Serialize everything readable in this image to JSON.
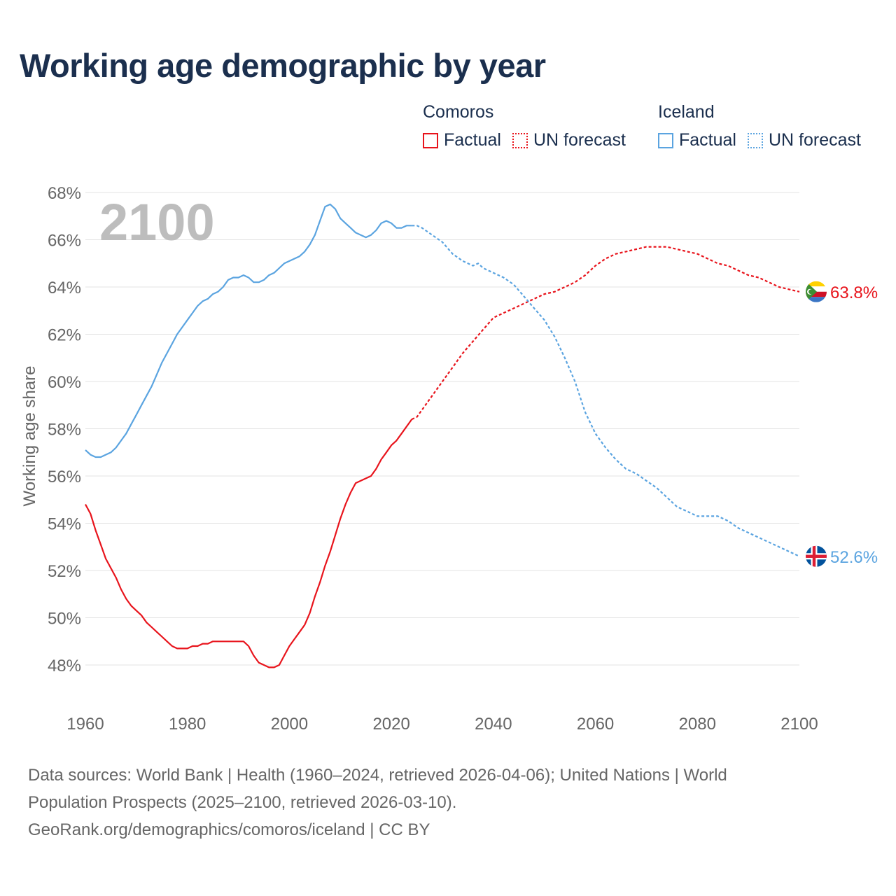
{
  "title": "Working age demographic by year",
  "legend": {
    "groups": [
      {
        "name": "Comoros",
        "factual_label": "Factual",
        "forecast_label": "UN forecast",
        "color": "#e8141c"
      },
      {
        "name": "Iceland",
        "factual_label": "Factual",
        "forecast_label": "UN forecast",
        "color": "#5ba4e0"
      }
    ]
  },
  "year_watermark": "2100",
  "footer": {
    "line1": "Data sources: World Bank | Health (1960–2024, retrieved 2026-04-06); United Nations | World",
    "line2": "Population Prospects (2025–2100, retrieved 2026-03-10).",
    "line3": "GeoRank.org/demographics/comoros/iceland | CC BY"
  },
  "chart_data": {
    "type": "line",
    "title": "Working age demographic by year",
    "xlabel": "",
    "ylabel": "Working age share",
    "xlim": [
      1960,
      2100
    ],
    "ylim": [
      47,
      68
    ],
    "x_ticks": [
      "1960",
      "1980",
      "2000",
      "2020",
      "2040",
      "2060",
      "2080",
      "2100"
    ],
    "y_ticks": [
      "48%",
      "50%",
      "52%",
      "54%",
      "56%",
      "58%",
      "60%",
      "62%",
      "64%",
      "66%",
      "68%"
    ],
    "grid": true,
    "factual_end_year": 2024,
    "series": [
      {
        "name": "Comoros",
        "color": "#e8141c",
        "end_label": "63.8%",
        "points": [
          [
            1960,
            54.8
          ],
          [
            1961,
            54.4
          ],
          [
            1962,
            53.7
          ],
          [
            1963,
            53.1
          ],
          [
            1964,
            52.5
          ],
          [
            1965,
            52.1
          ],
          [
            1966,
            51.7
          ],
          [
            1967,
            51.2
          ],
          [
            1968,
            50.8
          ],
          [
            1969,
            50.5
          ],
          [
            1970,
            50.3
          ],
          [
            1971,
            50.1
          ],
          [
            1972,
            49.8
          ],
          [
            1973,
            49.6
          ],
          [
            1974,
            49.4
          ],
          [
            1975,
            49.2
          ],
          [
            1976,
            49.0
          ],
          [
            1977,
            48.8
          ],
          [
            1978,
            48.7
          ],
          [
            1979,
            48.7
          ],
          [
            1980,
            48.7
          ],
          [
            1981,
            48.8
          ],
          [
            1982,
            48.8
          ],
          [
            1983,
            48.9
          ],
          [
            1984,
            48.9
          ],
          [
            1985,
            49.0
          ],
          [
            1986,
            49.0
          ],
          [
            1987,
            49.0
          ],
          [
            1988,
            49.0
          ],
          [
            1989,
            49.0
          ],
          [
            1990,
            49.0
          ],
          [
            1991,
            49.0
          ],
          [
            1992,
            48.8
          ],
          [
            1993,
            48.4
          ],
          [
            1994,
            48.1
          ],
          [
            1995,
            48.0
          ],
          [
            1996,
            47.9
          ],
          [
            1997,
            47.9
          ],
          [
            1998,
            48.0
          ],
          [
            1999,
            48.4
          ],
          [
            2000,
            48.8
          ],
          [
            2001,
            49.1
          ],
          [
            2002,
            49.4
          ],
          [
            2003,
            49.7
          ],
          [
            2004,
            50.2
          ],
          [
            2005,
            50.9
          ],
          [
            2006,
            51.5
          ],
          [
            2007,
            52.2
          ],
          [
            2008,
            52.8
          ],
          [
            2009,
            53.5
          ],
          [
            2010,
            54.2
          ],
          [
            2011,
            54.8
          ],
          [
            2012,
            55.3
          ],
          [
            2013,
            55.7
          ],
          [
            2014,
            55.8
          ],
          [
            2015,
            55.9
          ],
          [
            2016,
            56.0
          ],
          [
            2017,
            56.3
          ],
          [
            2018,
            56.7
          ],
          [
            2019,
            57.0
          ],
          [
            2020,
            57.3
          ],
          [
            2021,
            57.5
          ],
          [
            2022,
            57.8
          ],
          [
            2023,
            58.1
          ],
          [
            2024,
            58.4
          ],
          [
            2025,
            58.5
          ],
          [
            2026,
            58.8
          ],
          [
            2028,
            59.4
          ],
          [
            2030,
            60.0
          ],
          [
            2032,
            60.6
          ],
          [
            2034,
            61.2
          ],
          [
            2036,
            61.7
          ],
          [
            2038,
            62.2
          ],
          [
            2040,
            62.7
          ],
          [
            2042,
            62.9
          ],
          [
            2044,
            63.1
          ],
          [
            2046,
            63.3
          ],
          [
            2048,
            63.5
          ],
          [
            2050,
            63.7
          ],
          [
            2052,
            63.8
          ],
          [
            2054,
            64.0
          ],
          [
            2056,
            64.2
          ],
          [
            2058,
            64.5
          ],
          [
            2060,
            64.9
          ],
          [
            2062,
            65.2
          ],
          [
            2064,
            65.4
          ],
          [
            2066,
            65.5
          ],
          [
            2068,
            65.6
          ],
          [
            2070,
            65.7
          ],
          [
            2072,
            65.7
          ],
          [
            2074,
            65.7
          ],
          [
            2076,
            65.6
          ],
          [
            2078,
            65.5
          ],
          [
            2080,
            65.4
          ],
          [
            2082,
            65.2
          ],
          [
            2084,
            65.0
          ],
          [
            2086,
            64.9
          ],
          [
            2088,
            64.7
          ],
          [
            2090,
            64.5
          ],
          [
            2092,
            64.4
          ],
          [
            2094,
            64.2
          ],
          [
            2096,
            64.0
          ],
          [
            2098,
            63.9
          ],
          [
            2100,
            63.8
          ]
        ]
      },
      {
        "name": "Iceland",
        "color": "#5ba4e0",
        "end_label": "52.6%",
        "points": [
          [
            1960,
            57.1
          ],
          [
            1961,
            56.9
          ],
          [
            1962,
            56.8
          ],
          [
            1963,
            56.8
          ],
          [
            1964,
            56.9
          ],
          [
            1965,
            57.0
          ],
          [
            1966,
            57.2
          ],
          [
            1967,
            57.5
          ],
          [
            1968,
            57.8
          ],
          [
            1969,
            58.2
          ],
          [
            1970,
            58.6
          ],
          [
            1971,
            59.0
          ],
          [
            1972,
            59.4
          ],
          [
            1973,
            59.8
          ],
          [
            1974,
            60.3
          ],
          [
            1975,
            60.8
          ],
          [
            1976,
            61.2
          ],
          [
            1977,
            61.6
          ],
          [
            1978,
            62.0
          ],
          [
            1979,
            62.3
          ],
          [
            1980,
            62.6
          ],
          [
            1981,
            62.9
          ],
          [
            1982,
            63.2
          ],
          [
            1983,
            63.4
          ],
          [
            1984,
            63.5
          ],
          [
            1985,
            63.7
          ],
          [
            1986,
            63.8
          ],
          [
            1987,
            64.0
          ],
          [
            1988,
            64.3
          ],
          [
            1989,
            64.4
          ],
          [
            1990,
            64.4
          ],
          [
            1991,
            64.5
          ],
          [
            1992,
            64.4
          ],
          [
            1993,
            64.2
          ],
          [
            1994,
            64.2
          ],
          [
            1995,
            64.3
          ],
          [
            1996,
            64.5
          ],
          [
            1997,
            64.6
          ],
          [
            1998,
            64.8
          ],
          [
            1999,
            65.0
          ],
          [
            2000,
            65.1
          ],
          [
            2001,
            65.2
          ],
          [
            2002,
            65.3
          ],
          [
            2003,
            65.5
          ],
          [
            2004,
            65.8
          ],
          [
            2005,
            66.2
          ],
          [
            2006,
            66.8
          ],
          [
            2007,
            67.4
          ],
          [
            2008,
            67.5
          ],
          [
            2009,
            67.3
          ],
          [
            2010,
            66.9
          ],
          [
            2011,
            66.7
          ],
          [
            2012,
            66.5
          ],
          [
            2013,
            66.3
          ],
          [
            2014,
            66.2
          ],
          [
            2015,
            66.1
          ],
          [
            2016,
            66.2
          ],
          [
            2017,
            66.4
          ],
          [
            2018,
            66.7
          ],
          [
            2019,
            66.8
          ],
          [
            2020,
            66.7
          ],
          [
            2021,
            66.5
          ],
          [
            2022,
            66.5
          ],
          [
            2023,
            66.6
          ],
          [
            2024,
            66.6
          ],
          [
            2025,
            66.6
          ],
          [
            2026,
            66.5
          ],
          [
            2028,
            66.2
          ],
          [
            2030,
            65.9
          ],
          [
            2032,
            65.4
          ],
          [
            2034,
            65.1
          ],
          [
            2036,
            64.9
          ],
          [
            2037,
            65.0
          ],
          [
            2038,
            64.8
          ],
          [
            2040,
            64.6
          ],
          [
            2042,
            64.4
          ],
          [
            2044,
            64.1
          ],
          [
            2046,
            63.6
          ],
          [
            2048,
            63.1
          ],
          [
            2050,
            62.6
          ],
          [
            2052,
            61.9
          ],
          [
            2054,
            61.0
          ],
          [
            2056,
            60.0
          ],
          [
            2058,
            58.7
          ],
          [
            2060,
            57.8
          ],
          [
            2062,
            57.2
          ],
          [
            2064,
            56.7
          ],
          [
            2066,
            56.3
          ],
          [
            2068,
            56.1
          ],
          [
            2070,
            55.8
          ],
          [
            2072,
            55.5
          ],
          [
            2074,
            55.1
          ],
          [
            2076,
            54.7
          ],
          [
            2078,
            54.5
          ],
          [
            2080,
            54.3
          ],
          [
            2082,
            54.3
          ],
          [
            2084,
            54.3
          ],
          [
            2086,
            54.1
          ],
          [
            2088,
            53.8
          ],
          [
            2090,
            53.6
          ],
          [
            2092,
            53.4
          ],
          [
            2094,
            53.2
          ],
          [
            2096,
            53.0
          ],
          [
            2098,
            52.8
          ],
          [
            2100,
            52.6
          ]
        ]
      }
    ]
  }
}
